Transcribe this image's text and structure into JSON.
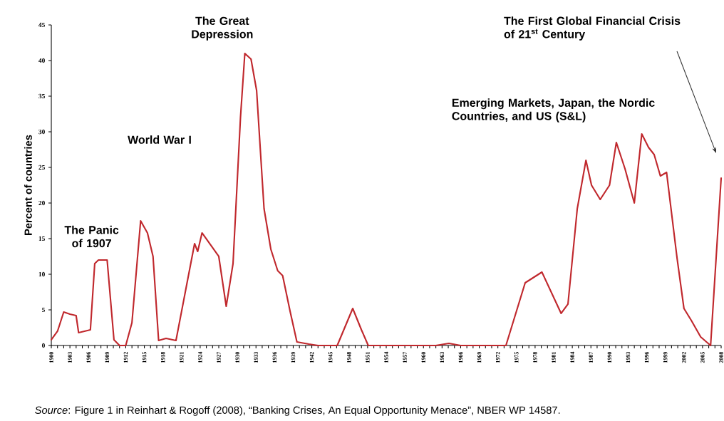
{
  "chart_data": {
    "type": "line",
    "ylabel": "Percent of countries",
    "x": [
      1900,
      1901,
      1902,
      1903,
      1904,
      1904.4,
      1906.3,
      1907,
      1907.6,
      1909,
      1910.1,
      1911,
      1912,
      1913,
      1914.4,
      1915.5,
      1916.4,
      1917.3,
      1918.5,
      1920.1,
      1921.6,
      1923.1,
      1923.6,
      1924.3,
      1927,
      1928.2,
      1929.3,
      1930.5,
      1931.2,
      1932.2,
      1933.1,
      1934.3,
      1935.4,
      1936.5,
      1937.3,
      1938.5,
      1939.6,
      1941.5,
      1943,
      1946.1,
      1948.6,
      1950,
      1951.1,
      1962,
      1964.1,
      1966,
      1973.3,
      1976.4,
      1979.1,
      1982.2,
      1983.3,
      1984.8,
      1986.2,
      1987.1,
      1988.5,
      1990,
      1991.1,
      1992.5,
      1994,
      1995.2,
      1996.3,
      1997.2,
      1998.2,
      1999.2,
      2000.9,
      2002,
      2003.2,
      2004.7,
      2006.3,
      2008
    ],
    "series": [
      {
        "color": "#c0282d",
        "values": [
          0.8,
          2,
          4.7,
          4.4,
          4.2,
          1.8,
          2.2,
          11.5,
          12,
          12,
          0.8,
          0,
          0,
          3.2,
          17.5,
          15.8,
          12.5,
          0.7,
          1,
          0.7,
          7.5,
          14.3,
          13.2,
          15.8,
          12.5,
          5.5,
          11.5,
          32,
          41,
          40.2,
          35.8,
          19.2,
          13.5,
          10.5,
          9.8,
          4.8,
          0.5,
          0.2,
          0,
          0,
          5.2,
          2.2,
          0,
          0,
          0.3,
          0,
          0,
          8.8,
          10.3,
          4.5,
          5.8,
          19.2,
          26,
          22.5,
          20.5,
          22.5,
          28.5,
          24.8,
          20,
          29.7,
          27.8,
          26.8,
          23.8,
          24.3,
          12.2,
          5.2,
          3.5,
          1.2,
          0,
          23.5
        ]
      }
    ],
    "xlim": [
      1900,
      2008
    ],
    "xticks": [
      1900,
      1903,
      1906,
      1909,
      1912,
      1915,
      1918,
      1921,
      1924,
      1927,
      1930,
      1933,
      1936,
      1939,
      1942,
      1945,
      1948,
      1951,
      1954,
      1957,
      1960,
      1963,
      1966,
      1969,
      1972,
      1975,
      1978,
      1981,
      1984,
      1987,
      1990,
      1993,
      1996,
      1999,
      2002,
      2005,
      2008
    ],
    "ylim": [
      0,
      45
    ],
    "yticks": [
      0,
      5,
      10,
      15,
      20,
      25,
      30,
      35,
      40,
      45
    ],
    "grid": false,
    "marker": "none",
    "line_style": "solid",
    "annotations": [
      {
        "text": "The Panic of 1907",
        "x": 1908,
        "y": 12
      },
      "World War I",
      {
        "text": "The Great Depression",
        "x": 1931,
        "y": 41
      },
      {
        "text": "Emerging Markets, Japan, the Nordic Countries, and US (S&L)",
        "x": 1995,
        "y": 29.7
      },
      "The First Global Financial Crisis of 21$^{st}$ Century",
      "*Source*: Figure 1 in Reinhart & Rogoff (2008), “Banking Crises, An Equal Opportunity Menace”, NBER WP 14587."
    ]
  }
}
